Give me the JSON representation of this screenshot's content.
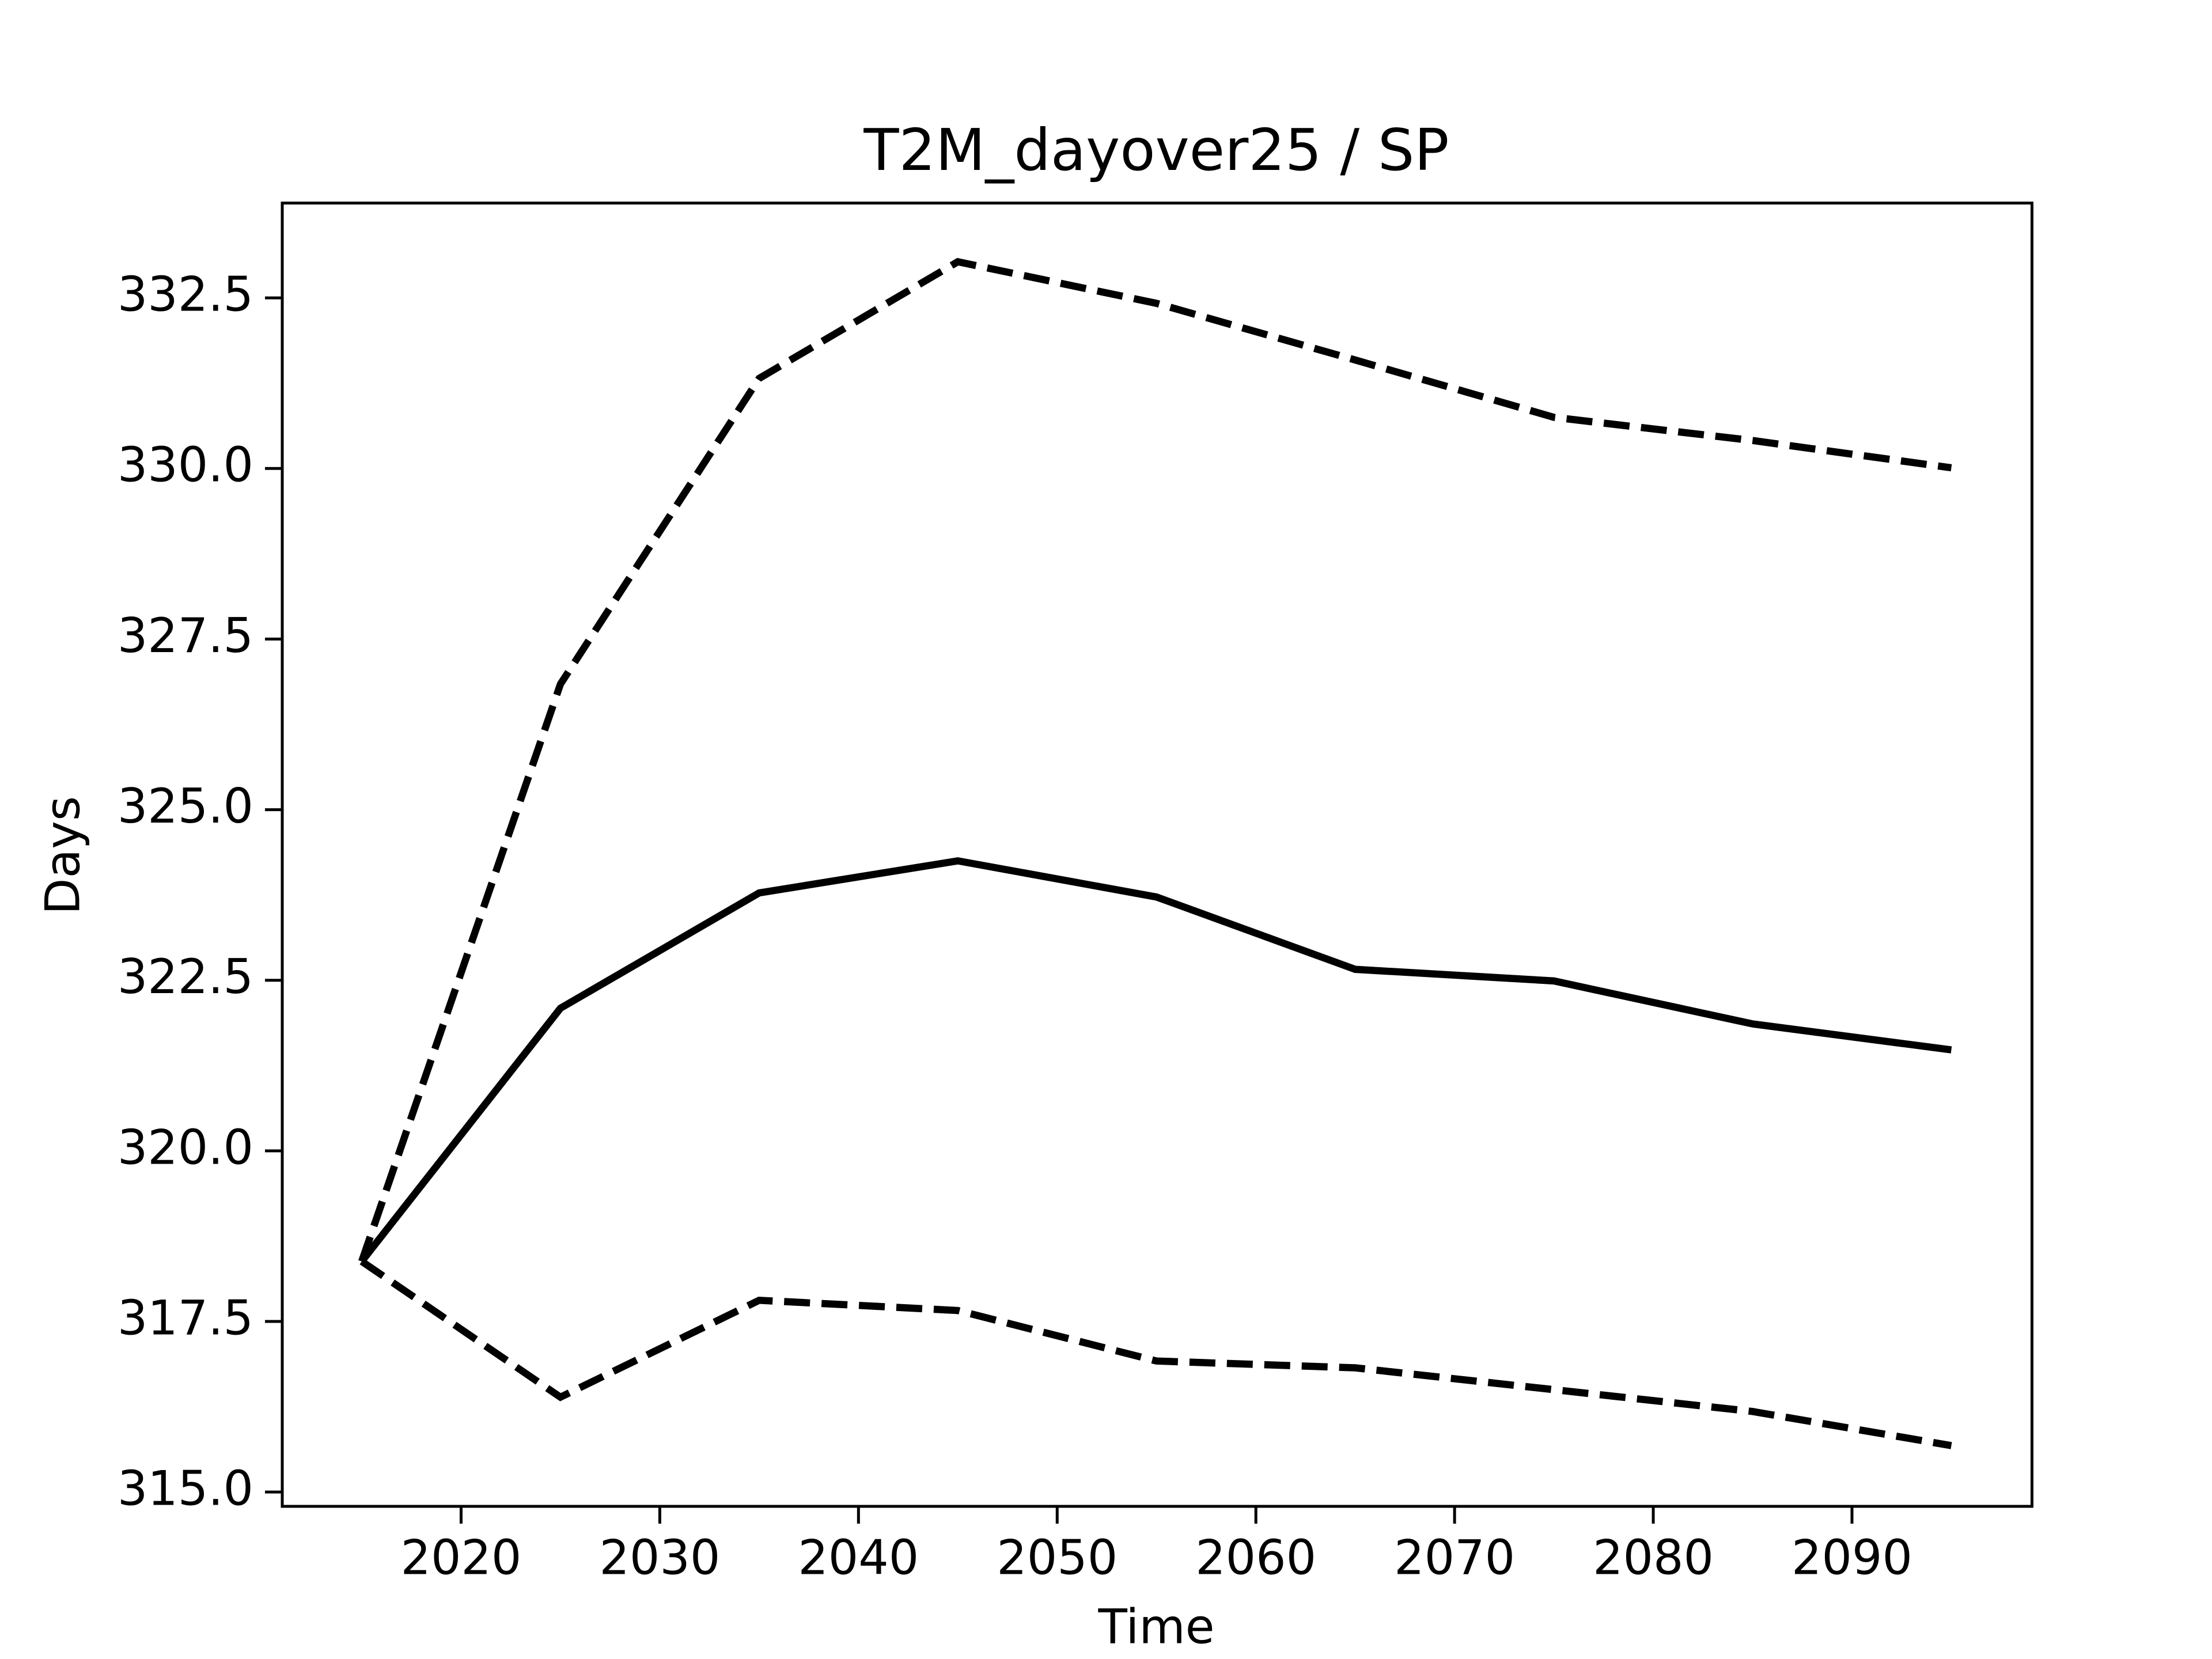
{
  "chart_data": {
    "type": "line",
    "title": "T2M_dayover25 / SP",
    "x_label": "Time",
    "y_label": "Days",
    "x": [
      2015,
      2025,
      2035,
      2045,
      2055,
      2065,
      2075,
      2085,
      2095
    ],
    "series": [
      {
        "color": "#000000",
        "style": "solid",
        "values": [
          318.38,
          322.09,
          323.78,
          324.25,
          323.72,
          322.66,
          322.49,
          321.86,
          321.48
        ]
      },
      {
        "color": "#000000",
        "style": "dashed",
        "values": [
          318.38,
          326.84,
          331.32,
          333.03,
          332.42,
          331.59,
          330.75,
          330.41,
          330.01
        ]
      },
      {
        "color": "#000000",
        "style": "dashed",
        "values": [
          318.38,
          316.39,
          317.81,
          317.66,
          316.92,
          316.82,
          316.5,
          316.18,
          315.68
        ]
      }
    ],
    "xlim": [
      2011.0,
      2099.06
    ],
    "xticks": [
      2020,
      2030,
      2040,
      2050,
      2060,
      2070,
      2080,
      2090
    ],
    "ylim": [
      314.79,
      333.89
    ],
    "yticks": [
      {
        "value": 315,
        "label": "315.0"
      },
      317.5,
      {
        "value": 320,
        "label": "320.0"
      },
      322.5,
      {
        "value": 325,
        "label": "325.0"
      },
      327.5,
      {
        "value": 330,
        "label": "330.0"
      },
      332.5
    ],
    "grid": false
  }
}
